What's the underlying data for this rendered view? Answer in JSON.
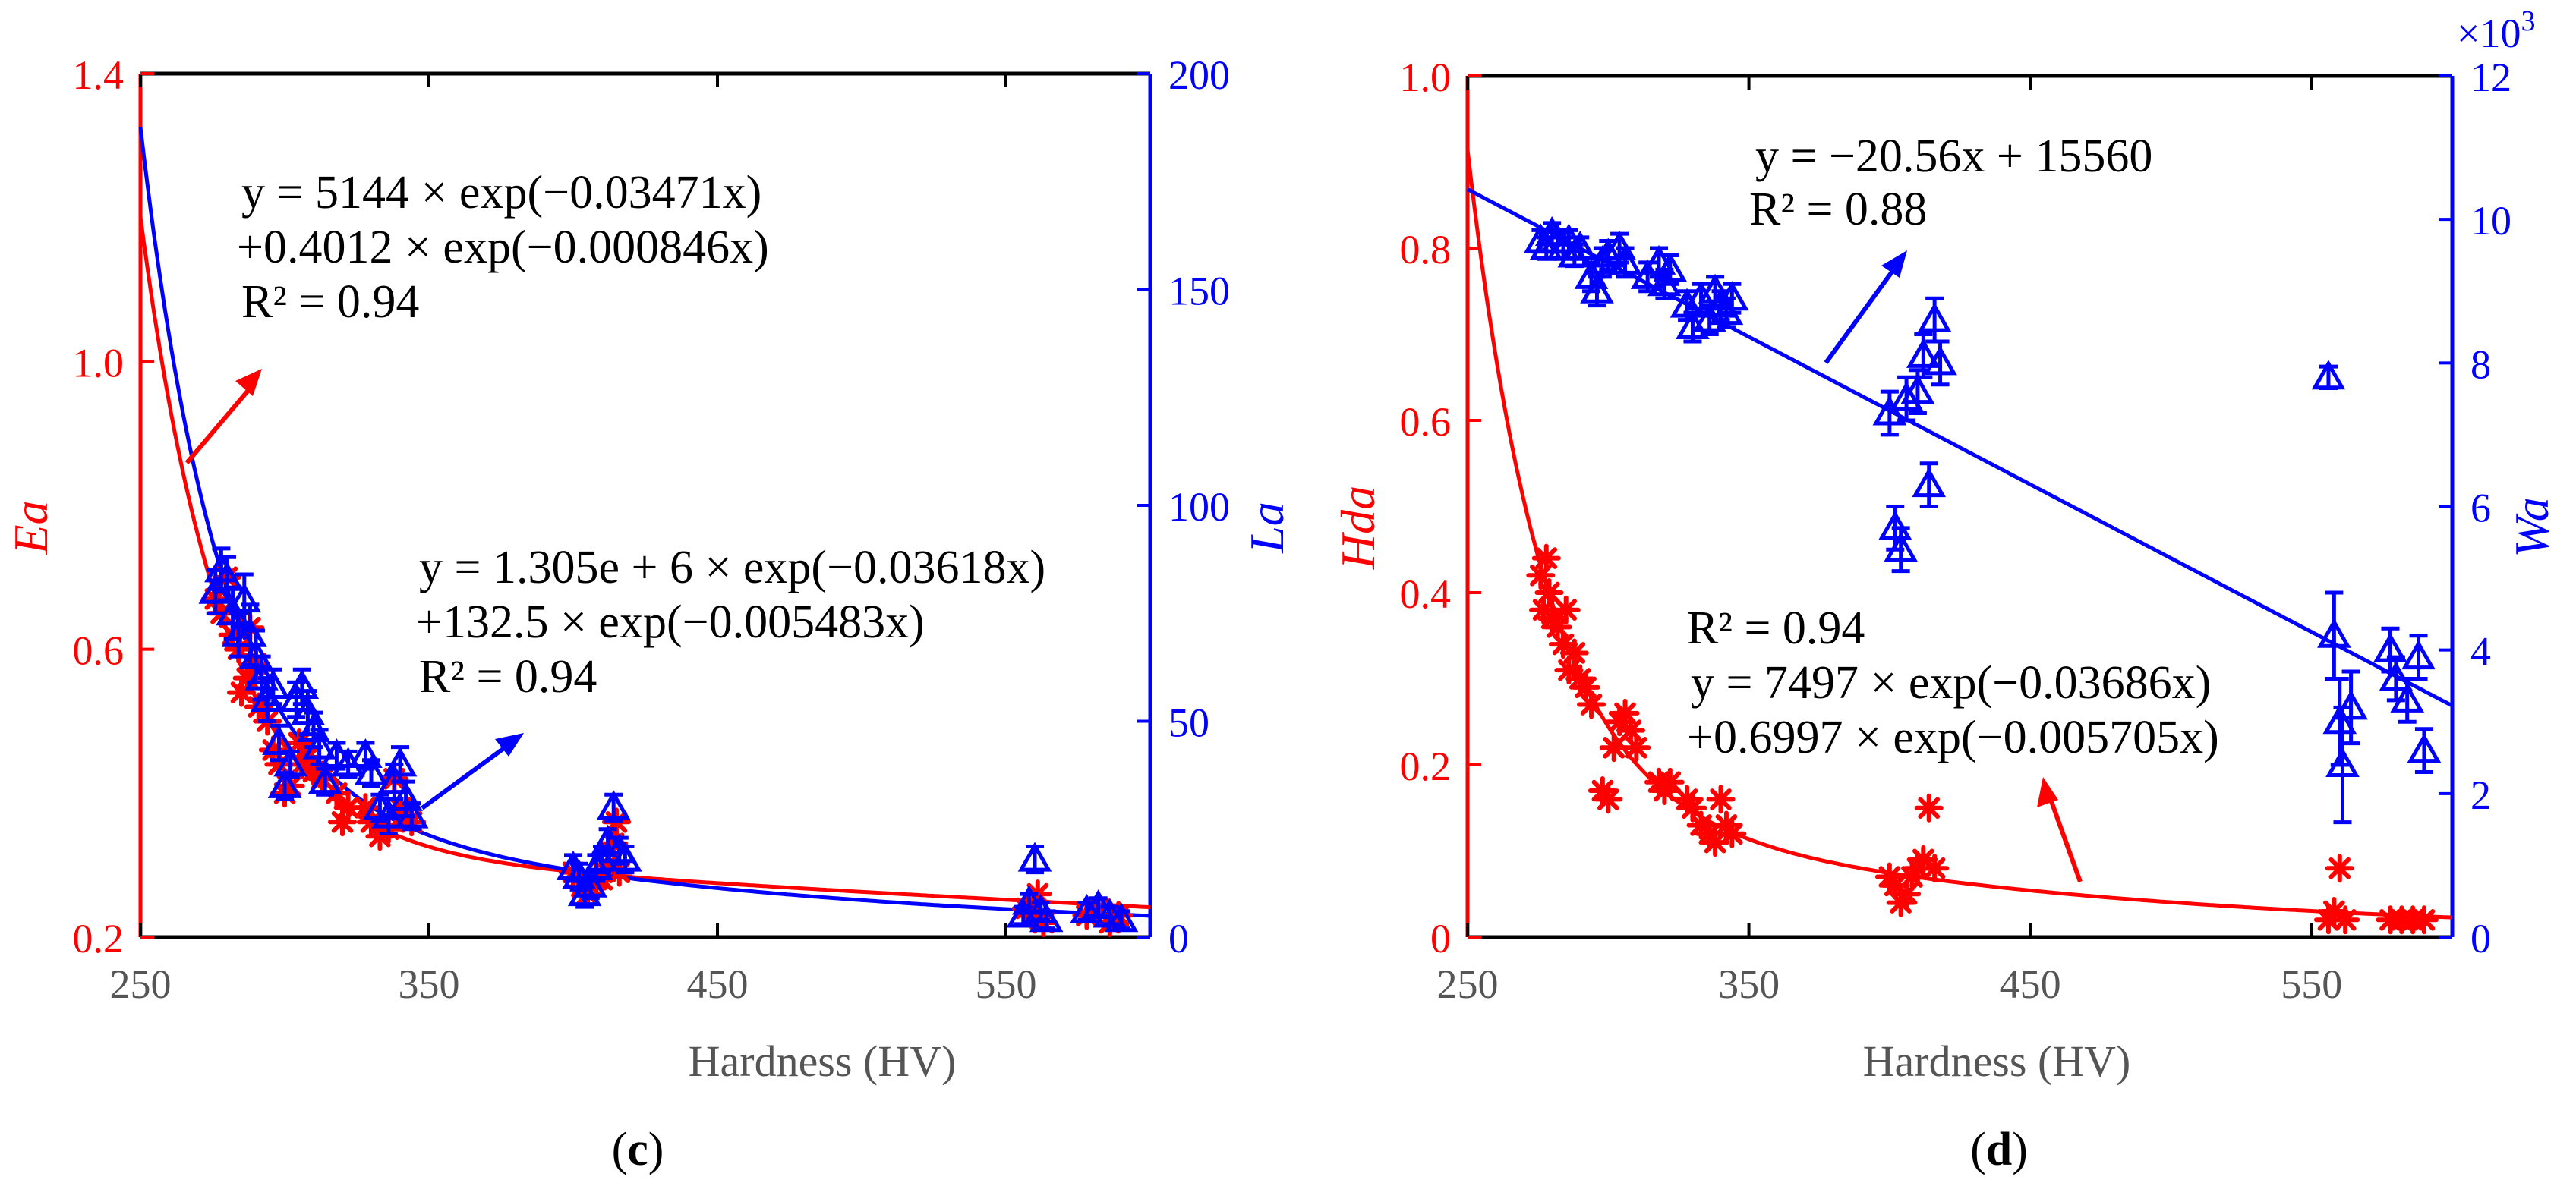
{
  "colors": {
    "red": "#ff0000",
    "blue": "#0000ff",
    "black": "#000000",
    "axis_gray": "#555555"
  },
  "chart_data": [
    {
      "panel_label": "(c)",
      "panel_letter": "c",
      "type": "scatter",
      "xlabel": "Hardness (HV)",
      "xlim": [
        250,
        600
      ],
      "xticks": [
        250,
        350,
        450,
        550
      ],
      "left_axis": {
        "label": "Ea",
        "ylim": [
          0.2,
          1.4
        ],
        "ticks": [
          0.2,
          0.6,
          1.0,
          1.4
        ],
        "tick_labels": [
          "0.2",
          "0.6",
          "1.0",
          "1.4"
        ],
        "color": "#ff0000"
      },
      "right_axis": {
        "label": "La",
        "ylim": [
          0,
          200
        ],
        "ticks": [
          0,
          50,
          100,
          150,
          200
        ],
        "tick_labels": [
          "0",
          "50",
          "100",
          "150",
          "200"
        ],
        "color": "#0000ff"
      },
      "series": [
        {
          "name": "Ea",
          "axis": "left",
          "marker": "asterisk",
          "color": "#ff0000",
          "points": [
            [
              276,
              0.67
            ],
            [
              278,
              0.65
            ],
            [
              280,
              0.7
            ],
            [
              282,
              0.62
            ],
            [
              284,
              0.6
            ],
            [
              285,
              0.54
            ],
            [
              287,
              0.56
            ],
            [
              288,
              0.63
            ],
            [
              290,
              0.58
            ],
            [
              291,
              0.52
            ],
            [
              294,
              0.5
            ],
            [
              296,
              0.46
            ],
            [
              298,
              0.44
            ],
            [
              300,
              0.4
            ],
            [
              302,
              0.41
            ],
            [
              305,
              0.47
            ],
            [
              306,
              0.44
            ],
            [
              308,
              0.45
            ],
            [
              310,
              0.43
            ],
            [
              313,
              0.42
            ],
            [
              318,
              0.4
            ],
            [
              320,
              0.36
            ],
            [
              322,
              0.38
            ],
            [
              328,
              0.38
            ],
            [
              330,
              0.36
            ],
            [
              333,
              0.34
            ],
            [
              336,
              0.35
            ],
            [
              338,
              0.42
            ],
            [
              340,
              0.38
            ],
            [
              342,
              0.37
            ],
            [
              344,
              0.36
            ],
            [
              400,
              0.29
            ],
            [
              403,
              0.27
            ],
            [
              405,
              0.26
            ],
            [
              408,
              0.28
            ],
            [
              410,
              0.28
            ],
            [
              412,
              0.3
            ],
            [
              414,
              0.33
            ],
            [
              415,
              0.36
            ],
            [
              416,
              0.29
            ],
            [
              557,
              0.24
            ],
            [
              559,
              0.23
            ],
            [
              561,
              0.26
            ],
            [
              563,
              0.22
            ],
            [
              578,
              0.23
            ],
            [
              582,
              0.24
            ],
            [
              586,
              0.22
            ],
            [
              589,
              0.23
            ]
          ]
        },
        {
          "name": "La",
          "axis": "right",
          "marker": "triangle",
          "color": "#0000ff",
          "points": [
            [
              276,
              80,
              5
            ],
            [
              278,
              85,
              5
            ],
            [
              280,
              83,
              5
            ],
            [
              282,
              75,
              6
            ],
            [
              284,
              70,
              5
            ],
            [
              286,
              78,
              6
            ],
            [
              288,
              70,
              7
            ],
            [
              290,
              65,
              6
            ],
            [
              292,
              60,
              5
            ],
            [
              294,
              55,
              5
            ],
            [
              296,
              58,
              4
            ],
            [
              298,
              45,
              4
            ],
            [
              300,
              35,
              3
            ],
            [
              302,
              40,
              3
            ],
            [
              304,
              55,
              4
            ],
            [
              306,
              58,
              4
            ],
            [
              308,
              52,
              5
            ],
            [
              310,
              48,
              4
            ],
            [
              312,
              44,
              4
            ],
            [
              314,
              36,
              3
            ],
            [
              318,
              42,
              3
            ],
            [
              322,
              40,
              3
            ],
            [
              328,
              42,
              3
            ],
            [
              330,
              38,
              3
            ],
            [
              333,
              30,
              3
            ],
            [
              336,
              28,
              4
            ],
            [
              338,
              36,
              4
            ],
            [
              340,
              40,
              4
            ],
            [
              342,
              32,
              4
            ],
            [
              344,
              28,
              3
            ],
            [
              400,
              16,
              3
            ],
            [
              402,
              14,
              3
            ],
            [
              404,
              10,
              3
            ],
            [
              406,
              12,
              3
            ],
            [
              408,
              16,
              3
            ],
            [
              410,
              18,
              3
            ],
            [
              412,
              22,
              3
            ],
            [
              414,
              30,
              3
            ],
            [
              416,
              20,
              3
            ],
            [
              418,
              18,
              3
            ],
            [
              556,
              5,
              2
            ],
            [
              558,
              8,
              2
            ],
            [
              560,
              18,
              3
            ],
            [
              562,
              6,
              2
            ],
            [
              564,
              4,
              2
            ],
            [
              578,
              6,
              2
            ],
            [
              582,
              7,
              2
            ],
            [
              586,
              5,
              2
            ],
            [
              590,
              4,
              2
            ]
          ]
        }
      ],
      "fits": [
        {
          "axis": "left",
          "color": "#ff0000",
          "model": "biexp",
          "a": 5144,
          "b": -0.03471,
          "c": 0.4012,
          "d": -0.000846,
          "x_range": [
            250,
            600
          ]
        },
        {
          "axis": "right",
          "color": "#0000ff",
          "model": "biexp",
          "a": 1305000,
          "b": -0.03618,
          "c": 132.5,
          "d": -0.005483,
          "x_range": [
            250,
            600
          ]
        }
      ],
      "annotations": [
        {
          "color": "#ff0000",
          "lines": [
            "y = 5144 × exp(−0.03471x)",
            "+0.4012 × exp(−0.000846x)",
            "R² = 0.94"
          ]
        },
        {
          "color": "#0000ff",
          "lines": [
            "y = 1.305e + 6 × exp(−0.03618x)",
            "+132.5 × exp(−0.005483x)",
            "R² = 0.94"
          ]
        }
      ]
    },
    {
      "panel_label": "(d)",
      "panel_letter": "d",
      "type": "scatter",
      "xlabel": "Hardness (HV)",
      "xlim": [
        250,
        600
      ],
      "xticks": [
        250,
        350,
        450,
        550
      ],
      "left_axis": {
        "label": "Hda",
        "ylim": [
          0,
          1.0
        ],
        "ticks": [
          0,
          0.2,
          0.4,
          0.6,
          0.8,
          1.0
        ],
        "tick_labels": [
          "0",
          "0.2",
          "0.4",
          "0.6",
          "0.8",
          "1.0"
        ],
        "color": "#ff0000"
      },
      "right_axis": {
        "label": "Wa",
        "ylim": [
          0,
          12
        ],
        "ticks": [
          0,
          2,
          4,
          6,
          8,
          10,
          12
        ],
        "tick_labels": [
          "0",
          "2",
          "4",
          "6",
          "8",
          "10",
          "12"
        ],
        "exponent_label": "×10",
        "exponent_sup": "3",
        "color": "#0000ff"
      },
      "series": [
        {
          "name": "Hda",
          "axis": "left",
          "marker": "asterisk",
          "color": "#ff0000",
          "points": [
            [
              276,
              0.42
            ],
            [
              277,
              0.38
            ],
            [
              278,
              0.44
            ],
            [
              279,
              0.4
            ],
            [
              280,
              0.37
            ],
            [
              282,
              0.36
            ],
            [
              284,
              0.34
            ],
            [
              285,
              0.38
            ],
            [
              286,
              0.31
            ],
            [
              288,
              0.33
            ],
            [
              290,
              0.3
            ],
            [
              292,
              0.29
            ],
            [
              294,
              0.27
            ],
            [
              298,
              0.17
            ],
            [
              300,
              0.16
            ],
            [
              302,
              0.22
            ],
            [
              304,
              0.25
            ],
            [
              306,
              0.26
            ],
            [
              308,
              0.24
            ],
            [
              310,
              0.22
            ],
            [
              318,
              0.18
            ],
            [
              320,
              0.17
            ],
            [
              322,
              0.18
            ],
            [
              328,
              0.16
            ],
            [
              330,
              0.15
            ],
            [
              333,
              0.13
            ],
            [
              336,
              0.12
            ],
            [
              338,
              0.11
            ],
            [
              340,
              0.16
            ],
            [
              342,
              0.13
            ],
            [
              344,
              0.12
            ],
            [
              400,
              0.07
            ],
            [
              402,
              0.06
            ],
            [
              404,
              0.04
            ],
            [
              406,
              0.05
            ],
            [
              408,
              0.07
            ],
            [
              410,
              0.08
            ],
            [
              412,
              0.09
            ],
            [
              414,
              0.15
            ],
            [
              416,
              0.08
            ],
            [
              556,
              0.02
            ],
            [
              558,
              0.03
            ],
            [
              560,
              0.08
            ],
            [
              562,
              0.02
            ],
            [
              578,
              0.02
            ],
            [
              582,
              0.02
            ],
            [
              586,
              0.02
            ],
            [
              590,
              0.02
            ]
          ]
        },
        {
          "name": "Wa",
          "axis": "right",
          "marker": "triangle",
          "color": "#0000ff",
          "points": [
            [
              276,
              9.7,
              0.15
            ],
            [
              278,
              9.6,
              0.15
            ],
            [
              280,
              9.8,
              0.15
            ],
            [
              282,
              9.7,
              0.15
            ],
            [
              284,
              9.6,
              0.15
            ],
            [
              286,
              9.7,
              0.15
            ],
            [
              288,
              9.5,
              0.15
            ],
            [
              290,
              9.6,
              0.15
            ],
            [
              294,
              9.2,
              0.2
            ],
            [
              296,
              9.0,
              0.2
            ],
            [
              298,
              9.4,
              0.2
            ],
            [
              300,
              9.5,
              0.2
            ],
            [
              304,
              9.6,
              0.2
            ],
            [
              306,
              9.4,
              0.2
            ],
            [
              314,
              9.2,
              0.2
            ],
            [
              318,
              9.4,
              0.2
            ],
            [
              320,
              9.1,
              0.2
            ],
            [
              322,
              9.3,
              0.2
            ],
            [
              328,
              8.8,
              0.2
            ],
            [
              330,
              8.5,
              0.2
            ],
            [
              333,
              8.9,
              0.2
            ],
            [
              336,
              8.6,
              0.2
            ],
            [
              338,
              9.0,
              0.2
            ],
            [
              340,
              8.8,
              0.2
            ],
            [
              342,
              8.7,
              0.2
            ],
            [
              344,
              8.9,
              0.2
            ],
            [
              400,
              7.3,
              0.3
            ],
            [
              402,
              5.7,
              0.3
            ],
            [
              404,
              5.4,
              0.3
            ],
            [
              406,
              7.5,
              0.3
            ],
            [
              410,
              7.6,
              0.3
            ],
            [
              412,
              8.1,
              0.3
            ],
            [
              414,
              6.3,
              0.3
            ],
            [
              416,
              8.6,
              0.3
            ],
            [
              418,
              8.0,
              0.3
            ],
            [
              556,
              7.8,
              0.15
            ],
            [
              558,
              4.2,
              0.6
            ],
            [
              560,
              3.0,
              0.6
            ],
            [
              561,
              2.4,
              0.8
            ],
            [
              564,
              3.2,
              0.5
            ],
            [
              578,
              4.0,
              0.3
            ],
            [
              580,
              3.6,
              0.3
            ],
            [
              584,
              3.3,
              0.3
            ],
            [
              588,
              3.9,
              0.3
            ],
            [
              590,
              2.6,
              0.3
            ]
          ]
        }
      ],
      "fits": [
        {
          "axis": "left",
          "color": "#ff0000",
          "model": "biexp",
          "a": 7497,
          "b": -0.03686,
          "c": 0.6997,
          "d": -0.005705,
          "x_range": [
            250,
            600
          ]
        },
        {
          "axis": "right",
          "color": "#0000ff",
          "model": "linear",
          "slope": -20.56,
          "intercept": 15560,
          "scale": 0.001,
          "x_range": [
            250,
            600
          ]
        }
      ],
      "annotations": [
        {
          "color": "#000000",
          "lines": [
            "y = −20.56x + 15560",
            "R² = 0.88"
          ]
        },
        {
          "color": "#000000",
          "lines": [
            "R² = 0.94",
            "y = 7497 × exp(−0.03686x)",
            "+0.6997 × exp(−0.005705x)"
          ]
        }
      ]
    }
  ]
}
